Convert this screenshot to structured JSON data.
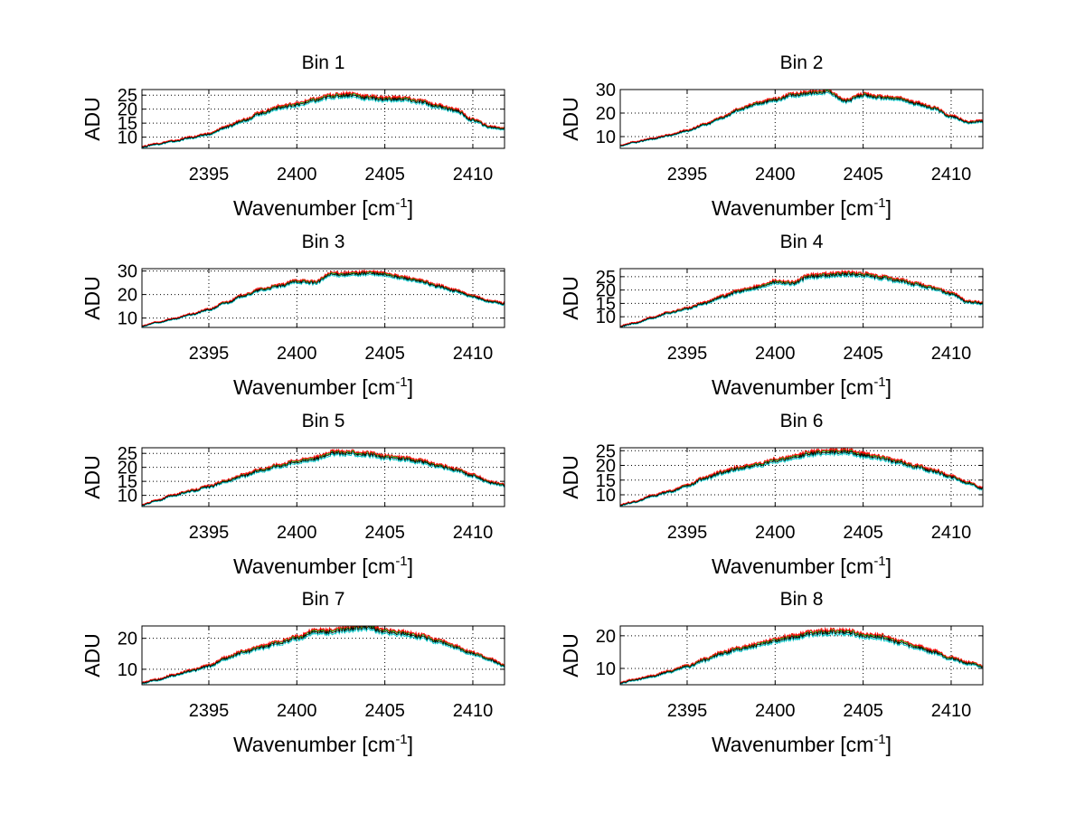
{
  "chart_data": [
    {
      "type": "line",
      "title": "Bin 1",
      "xlabel": "Wavenumber [cm",
      "xlabel_sup": "-1",
      "xlabel_end": "]",
      "ylabel": "ADU",
      "xlim": [
        2391.2,
        2411.8
      ],
      "ylim": [
        6,
        27
      ],
      "xticks": [
        2395,
        2400,
        2405,
        2410
      ],
      "yticks": [
        10,
        15,
        20,
        25
      ],
      "grid": true,
      "x": [
        2391.2,
        2392,
        2393,
        2394,
        2395,
        2396,
        2397,
        2398,
        2399,
        2400,
        2401,
        2402,
        2403,
        2404,
        2405,
        2406,
        2407,
        2408,
        2409,
        2410,
        2411,
        2411.8
      ],
      "series": [
        {
          "values": [
            6.5,
            7.5,
            8.5,
            9.8,
            11.0,
            13.5,
            16.0,
            18.5,
            20.5,
            21.5,
            23.0,
            24.5,
            25.0,
            24.0,
            23.5,
            23.5,
            22.5,
            21.0,
            19.5,
            16.0,
            13.5,
            13.0
          ]
        }
      ]
    },
    {
      "type": "line",
      "title": "Bin 2",
      "xlabel": "Wavenumber [cm",
      "xlabel_sup": "-1",
      "xlabel_end": "]",
      "ylabel": "ADU",
      "xlim": [
        2391.2,
        2411.8
      ],
      "ylim": [
        5,
        30
      ],
      "xticks": [
        2395,
        2400,
        2405,
        2410
      ],
      "yticks": [
        10,
        20,
        30
      ],
      "grid": true,
      "x": [
        2391.2,
        2392,
        2393,
        2394,
        2395,
        2396,
        2397,
        2398,
        2399,
        2400,
        2401,
        2402,
        2403,
        2404,
        2405,
        2406,
        2407,
        2408,
        2409,
        2410,
        2411,
        2411.8
      ],
      "series": [
        {
          "values": [
            6.0,
            7.5,
            9.0,
            10.5,
            12.5,
            15.0,
            18.0,
            21.5,
            24.0,
            25.5,
            27.5,
            28.5,
            29.0,
            25.0,
            27.5,
            26.5,
            26.0,
            24.0,
            22.0,
            18.5,
            16.0,
            16.5
          ]
        }
      ]
    },
    {
      "type": "line",
      "title": "Bin 3",
      "xlabel": "Wavenumber [cm",
      "xlabel_sup": "-1",
      "xlabel_end": "]",
      "ylabel": "ADU",
      "xlim": [
        2391.2,
        2411.8
      ],
      "ylim": [
        6,
        31
      ],
      "xticks": [
        2395,
        2400,
        2405,
        2410
      ],
      "yticks": [
        10,
        20,
        30
      ],
      "grid": true,
      "x": [
        2391.2,
        2392,
        2393,
        2394,
        2395,
        2396,
        2397,
        2398,
        2399,
        2400,
        2401,
        2402,
        2403,
        2404,
        2405,
        2406,
        2407,
        2408,
        2409,
        2410,
        2411,
        2411.8
      ],
      "series": [
        {
          "values": [
            6.5,
            8.0,
            9.5,
            11.5,
            13.5,
            16.5,
            19.5,
            22.0,
            23.5,
            25.5,
            25.0,
            28.5,
            28.5,
            29.0,
            28.5,
            27.0,
            25.5,
            23.5,
            21.5,
            19.0,
            17.0,
            16.0
          ]
        }
      ]
    },
    {
      "type": "line",
      "title": "Bin 4",
      "xlabel": "Wavenumber [cm",
      "xlabel_sup": "-1",
      "xlabel_end": "]",
      "ylabel": "ADU",
      "xlim": [
        2391.2,
        2411.8
      ],
      "ylim": [
        6,
        28
      ],
      "xticks": [
        2395,
        2400,
        2405,
        2410
      ],
      "yticks": [
        10,
        15,
        20,
        25
      ],
      "grid": true,
      "x": [
        2391.2,
        2392,
        2393,
        2394,
        2395,
        2396,
        2397,
        2398,
        2399,
        2400,
        2401,
        2402,
        2403,
        2404,
        2405,
        2406,
        2407,
        2408,
        2409,
        2410,
        2411,
        2411.8
      ],
      "series": [
        {
          "values": [
            6.5,
            7.5,
            9.5,
            11.5,
            13.0,
            15.0,
            17.5,
            19.5,
            21.0,
            23.0,
            22.5,
            25.0,
            25.5,
            26.0,
            25.5,
            24.5,
            23.5,
            22.0,
            20.5,
            18.5,
            15.5,
            15.0
          ]
        }
      ]
    },
    {
      "type": "line",
      "title": "Bin 5",
      "xlabel": "Wavenumber [cm",
      "xlabel_sup": "-1",
      "xlabel_end": "]",
      "ylabel": "ADU",
      "xlim": [
        2391.2,
        2411.8
      ],
      "ylim": [
        6,
        27
      ],
      "xticks": [
        2395,
        2400,
        2405,
        2410
      ],
      "yticks": [
        10,
        15,
        20,
        25
      ],
      "grid": true,
      "x": [
        2391.2,
        2392,
        2393,
        2394,
        2395,
        2396,
        2397,
        2398,
        2399,
        2400,
        2401,
        2402,
        2403,
        2404,
        2405,
        2406,
        2407,
        2408,
        2409,
        2410,
        2411,
        2411.8
      ],
      "series": [
        {
          "values": [
            6.5,
            8.0,
            10.0,
            11.5,
            13.0,
            15.0,
            17.0,
            19.0,
            20.5,
            22.0,
            23.0,
            25.0,
            25.0,
            24.5,
            23.5,
            23.0,
            22.0,
            20.5,
            19.0,
            17.0,
            14.5,
            13.5
          ]
        }
      ]
    },
    {
      "type": "line",
      "title": "Bin 6",
      "xlabel": "Wavenumber [cm",
      "xlabel_sup": "-1",
      "xlabel_end": "]",
      "ylabel": "ADU",
      "xlim": [
        2391.2,
        2411.8
      ],
      "ylim": [
        6,
        26
      ],
      "xticks": [
        2395,
        2400,
        2405,
        2410
      ],
      "yticks": [
        10,
        15,
        20,
        25
      ],
      "grid": true,
      "x": [
        2391.2,
        2392,
        2393,
        2394,
        2395,
        2396,
        2397,
        2398,
        2399,
        2400,
        2401,
        2402,
        2403,
        2404,
        2405,
        2406,
        2407,
        2408,
        2409,
        2410,
        2411,
        2411.8
      ],
      "series": [
        {
          "values": [
            6.5,
            7.5,
            9.5,
            11.0,
            13.0,
            15.5,
            17.5,
            19.0,
            20.0,
            21.5,
            22.5,
            24.0,
            24.5,
            24.5,
            23.5,
            22.5,
            21.0,
            19.5,
            18.0,
            16.0,
            14.0,
            12.0
          ]
        }
      ]
    },
    {
      "type": "line",
      "title": "Bin 7",
      "xlabel": "Wavenumber [cm",
      "xlabel_sup": "-1",
      "xlabel_end": "]",
      "ylabel": "ADU",
      "xlim": [
        2391.2,
        2411.8
      ],
      "ylim": [
        5,
        24
      ],
      "xticks": [
        2395,
        2400,
        2405,
        2410
      ],
      "yticks": [
        10,
        20
      ],
      "grid": true,
      "x": [
        2391.2,
        2392,
        2393,
        2394,
        2395,
        2396,
        2397,
        2398,
        2399,
        2400,
        2401,
        2402,
        2403,
        2404,
        2405,
        2406,
        2407,
        2408,
        2409,
        2410,
        2411,
        2411.8
      ],
      "series": [
        {
          "values": [
            5.5,
            6.5,
            8.0,
            9.5,
            11.0,
            13.5,
            15.5,
            17.0,
            18.5,
            20.0,
            22.0,
            22.0,
            23.0,
            23.5,
            22.0,
            21.5,
            20.5,
            19.0,
            17.0,
            15.0,
            13.0,
            11.0
          ]
        }
      ]
    },
    {
      "type": "line",
      "title": "Bin 8",
      "xlabel": "Wavenumber [cm",
      "xlabel_sup": "-1",
      "xlabel_end": "]",
      "ylabel": "ADU",
      "xlim": [
        2391.2,
        2411.8
      ],
      "ylim": [
        5,
        23
      ],
      "xticks": [
        2395,
        2400,
        2405,
        2410
      ],
      "yticks": [
        10,
        20
      ],
      "grid": true,
      "x": [
        2391.2,
        2392,
        2393,
        2394,
        2395,
        2396,
        2397,
        2398,
        2399,
        2400,
        2401,
        2402,
        2403,
        2404,
        2405,
        2406,
        2407,
        2408,
        2409,
        2410,
        2411,
        2411.8
      ],
      "series": [
        {
          "values": [
            5.5,
            6.5,
            7.5,
            9.0,
            10.5,
            12.5,
            14.5,
            16.0,
            17.0,
            18.5,
            19.5,
            20.5,
            21.0,
            21.0,
            20.0,
            19.5,
            18.0,
            16.5,
            15.0,
            13.0,
            11.5,
            10.5
          ]
        }
      ]
    }
  ],
  "colors": {
    "trace_primary": "#000000",
    "trace_offsets": [
      "#ff0000",
      "#00b000",
      "#00c8c8"
    ],
    "grid": "#000000",
    "axes": "#000000"
  }
}
